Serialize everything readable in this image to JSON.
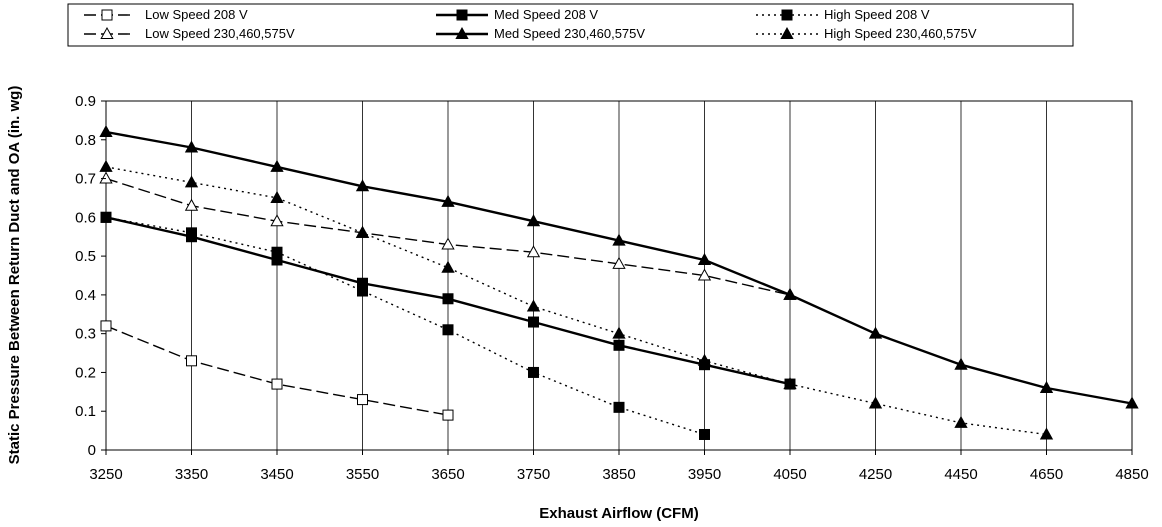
{
  "chart_data": {
    "type": "line",
    "xlabel": "Exhaust Airflow (CFM)",
    "ylabel": "Static Pressure Between Return Duct and OA (in. wg)",
    "categories": [
      "3250",
      "3350",
      "3450",
      "3550",
      "3650",
      "3750",
      "3850",
      "3950",
      "4050",
      "4250",
      "4450",
      "4650",
      "4850"
    ],
    "y_ticks": [
      "0",
      "0.1",
      "0.2",
      "0.3",
      "0.4",
      "0.5",
      "0.6",
      "0.7",
      "0.8",
      "0.9"
    ],
    "ylim": [
      0,
      0.9
    ],
    "grid": "vertical",
    "legend_position": "top",
    "series": [
      {
        "name": "Low Speed 208 V",
        "marker": "square-open",
        "line": "dashed",
        "values": [
          0.32,
          0.23,
          0.17,
          0.13,
          0.09,
          null,
          null,
          null,
          null,
          null,
          null,
          null,
          null
        ]
      },
      {
        "name": "Med Speed 208 V",
        "marker": "square-filled",
        "line": "solid",
        "values": [
          0.6,
          0.55,
          0.49,
          0.43,
          0.39,
          0.33,
          0.27,
          0.22,
          0.17,
          null,
          null,
          null,
          null
        ]
      },
      {
        "name": "High Speed 208 V",
        "marker": "square-filled",
        "line": "dotted",
        "values": [
          0.6,
          0.56,
          0.51,
          0.41,
          0.31,
          0.2,
          0.11,
          0.04,
          null,
          null,
          null,
          null,
          null
        ]
      },
      {
        "name": "Low Speed 230,460,575V",
        "marker": "triangle-open",
        "line": "dashed",
        "values": [
          0.7,
          0.63,
          0.59,
          0.56,
          0.53,
          0.51,
          0.48,
          0.45,
          0.4,
          null,
          null,
          null,
          null
        ]
      },
      {
        "name": "Med Speed 230,460,575V",
        "marker": "triangle-filled",
        "line": "solid",
        "values": [
          0.82,
          0.78,
          0.73,
          0.68,
          0.64,
          0.59,
          0.54,
          0.49,
          0.4,
          0.3,
          0.22,
          0.16,
          0.12
        ]
      },
      {
        "name": "High Speed 230,460,575V",
        "marker": "triangle-filled",
        "line": "dotted",
        "values": [
          0.73,
          0.69,
          0.65,
          0.56,
          0.47,
          0.37,
          0.3,
          0.23,
          0.17,
          0.12,
          0.07,
          0.04,
          null
        ]
      }
    ]
  }
}
